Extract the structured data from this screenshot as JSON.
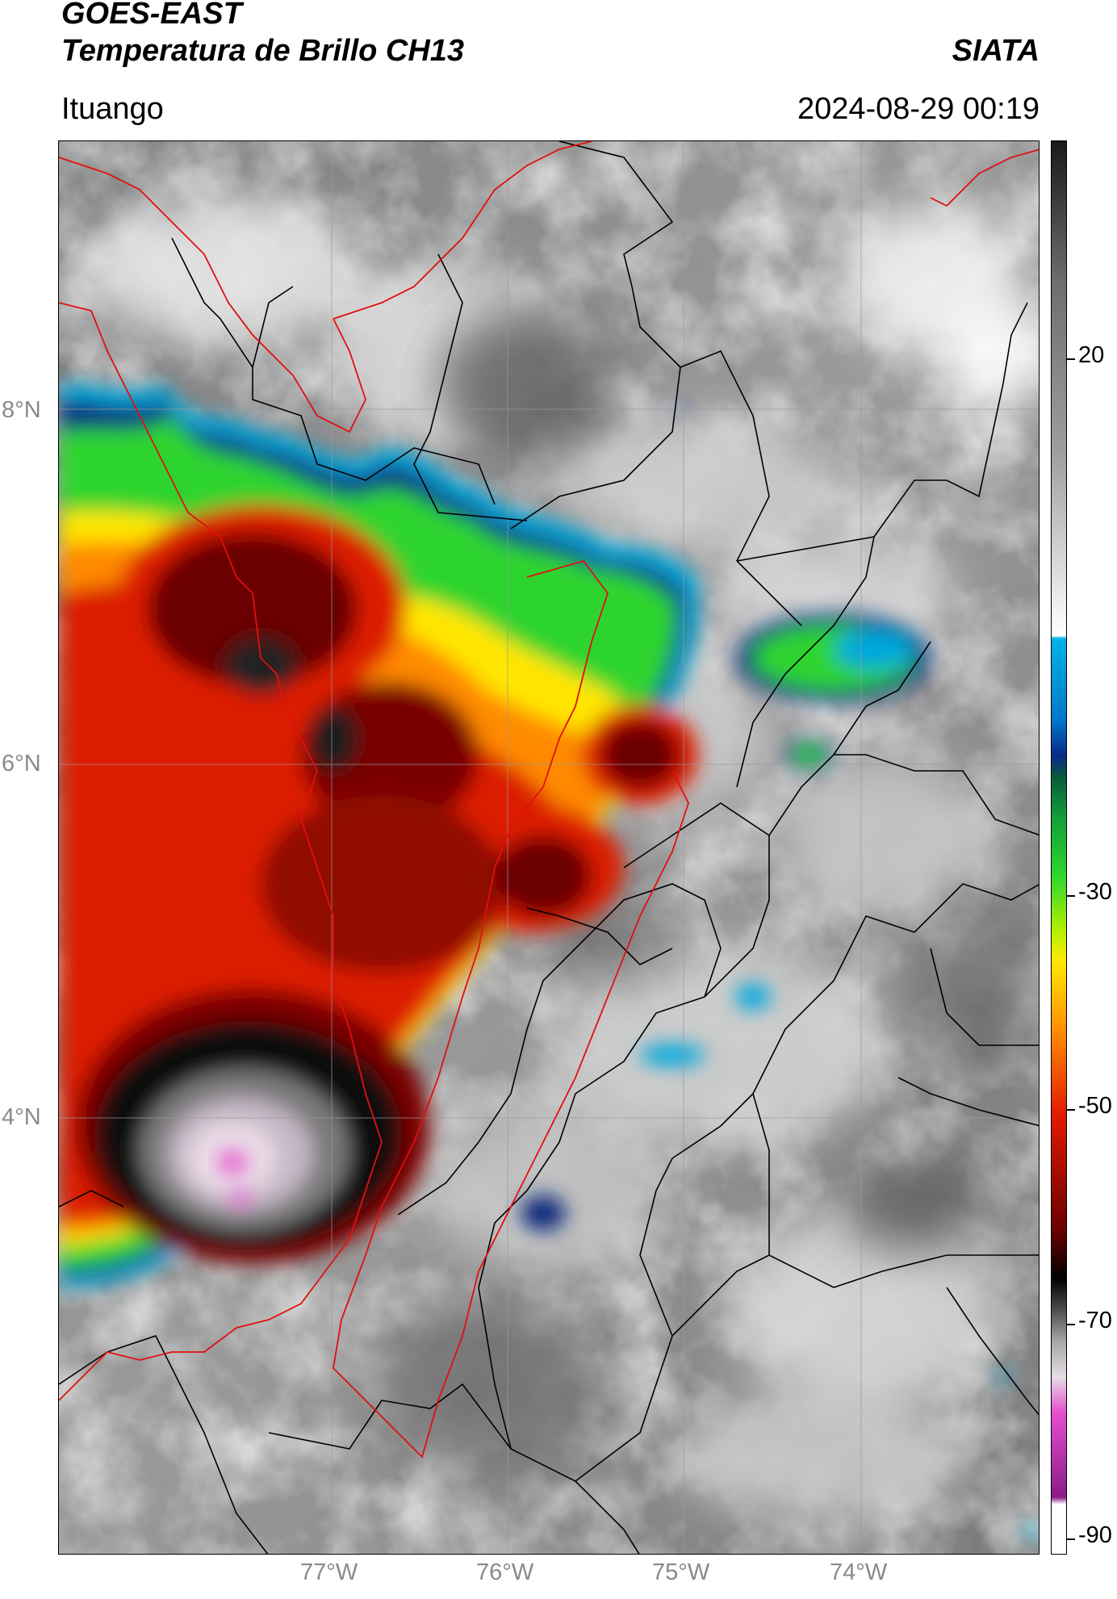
{
  "header": {
    "satellite": "GOES-EAST",
    "product": "Temperatura de Brillo CH13",
    "agency": "SIATA",
    "region": "Ituango",
    "datetime": "2024-08-29 00:19"
  },
  "map": {
    "latitude_labels": [
      "8°N",
      "6°N",
      "4°N"
    ],
    "longitude_labels": [
      "77°W",
      "76°W",
      "75°W",
      "74°W"
    ],
    "lines": {
      "coastline": "#e01010",
      "admin_borders": "#000000",
      "gridlines": "#9a9a9a"
    }
  },
  "colorbar": {
    "ticks": [
      "20",
      "-30",
      "-50",
      "-70",
      "-90"
    ],
    "colors": {
      "warm_gray_top": "#1a1a1a",
      "warm_gray_bottom": "#ffffff",
      "cyan": "#00b4e6",
      "blue": "#0a2a8c",
      "green": "#2ed62e",
      "yellow": "#ffea00",
      "orange": "#ff8c00",
      "red": "#e01a00",
      "dark_red": "#6b0000",
      "black": "#000000",
      "pink": "#e64fd0",
      "purple": "#8a1a8a"
    }
  }
}
